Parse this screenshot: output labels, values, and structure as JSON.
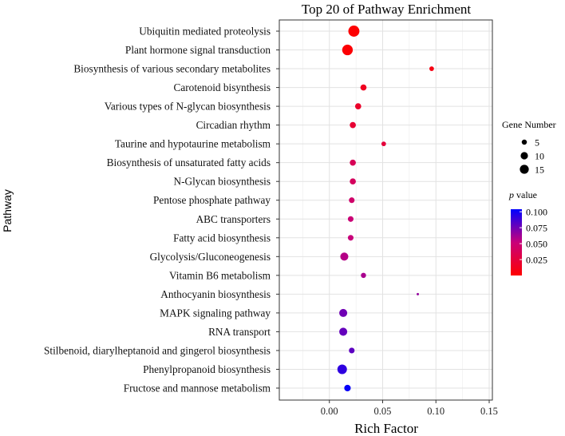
{
  "chart_data": {
    "type": "scatter",
    "title": "Top 20 of Pathway Enrichment",
    "xlabel": "Rich Factor",
    "ylabel": "Pathway",
    "xlim": [
      -0.047,
      0.153
    ],
    "xticks": [
      0.0,
      0.05,
      0.1,
      0.15
    ],
    "xtick_labels": [
      "0.00",
      "0.05",
      "0.10",
      "0.15"
    ],
    "grid": true,
    "legend_placement": "right",
    "size_legend": {
      "title": "Gene Number",
      "values": [
        5,
        10,
        15
      ],
      "labels": [
        "5",
        "10",
        "15"
      ]
    },
    "color_legend": {
      "title_italic": "p",
      "title_rest": " value",
      "range": [
        0.0,
        0.104
      ],
      "ticks": [
        0.1,
        0.075,
        0.05,
        0.025
      ],
      "tick_labels": [
        "0.100",
        "0.075",
        "0.050",
        "0.025"
      ],
      "low_color": "#ff0000",
      "high_color": "#0000ff"
    },
    "points": [
      {
        "pathway": "Ubiquitin mediated proteolysis",
        "rich_factor": 0.023,
        "gene_number": 23,
        "p_value": 0.001
      },
      {
        "pathway": "Plant hormone signal transduction",
        "rich_factor": 0.017,
        "gene_number": 21,
        "p_value": 0.002
      },
      {
        "pathway": "Biosynthesis of various secondary metabolites",
        "rich_factor": 0.096,
        "gene_number": 4,
        "p_value": 0.008
      },
      {
        "pathway": "Carotenoid bisynthesis",
        "rich_factor": 0.032,
        "gene_number": 7,
        "p_value": 0.014
      },
      {
        "pathway": "Various types of N-glycan biosynthesis",
        "rich_factor": 0.027,
        "gene_number": 7,
        "p_value": 0.018
      },
      {
        "pathway": "Circadian rhythm",
        "rich_factor": 0.022,
        "gene_number": 7,
        "p_value": 0.022
      },
      {
        "pathway": "Taurine and hypotaurine metabolism",
        "rich_factor": 0.051,
        "gene_number": 4,
        "p_value": 0.025
      },
      {
        "pathway": "Biosynthesis of unsaturated fatty acids",
        "rich_factor": 0.022,
        "gene_number": 7,
        "p_value": 0.037
      },
      {
        "pathway": "N-Glycan biosynthesis",
        "rich_factor": 0.022,
        "gene_number": 7,
        "p_value": 0.04
      },
      {
        "pathway": "Pentose phosphate pathway",
        "rich_factor": 0.021,
        "gene_number": 6,
        "p_value": 0.045
      },
      {
        "pathway": "ABC transporters",
        "rich_factor": 0.02,
        "gene_number": 6,
        "p_value": 0.05
      },
      {
        "pathway": "Fatty acid biosynthesis",
        "rich_factor": 0.02,
        "gene_number": 6,
        "p_value": 0.052
      },
      {
        "pathway": "Glycolysis/Gluconeogenesis",
        "rich_factor": 0.014,
        "gene_number": 12,
        "p_value": 0.057
      },
      {
        "pathway": "Vitamin B6 metabolism",
        "rich_factor": 0.032,
        "gene_number": 5,
        "p_value": 0.06
      },
      {
        "pathway": "Anthocyanin biosynthesis",
        "rich_factor": 0.083,
        "gene_number": 1,
        "p_value": 0.066
      },
      {
        "pathway": "MAPK signaling pathway",
        "rich_factor": 0.013,
        "gene_number": 12,
        "p_value": 0.075
      },
      {
        "pathway": "RNA transport",
        "rich_factor": 0.013,
        "gene_number": 12,
        "p_value": 0.078
      },
      {
        "pathway": "Stilbenoid, diarylheptanoid and gingerol biosynthesis",
        "rich_factor": 0.021,
        "gene_number": 6,
        "p_value": 0.08
      },
      {
        "pathway": "Phenylpropanoid biosynthesis",
        "rich_factor": 0.012,
        "gene_number": 17,
        "p_value": 0.092
      },
      {
        "pathway": "Fructose and mannose metabolism",
        "rich_factor": 0.017,
        "gene_number": 8,
        "p_value": 0.102
      }
    ]
  }
}
